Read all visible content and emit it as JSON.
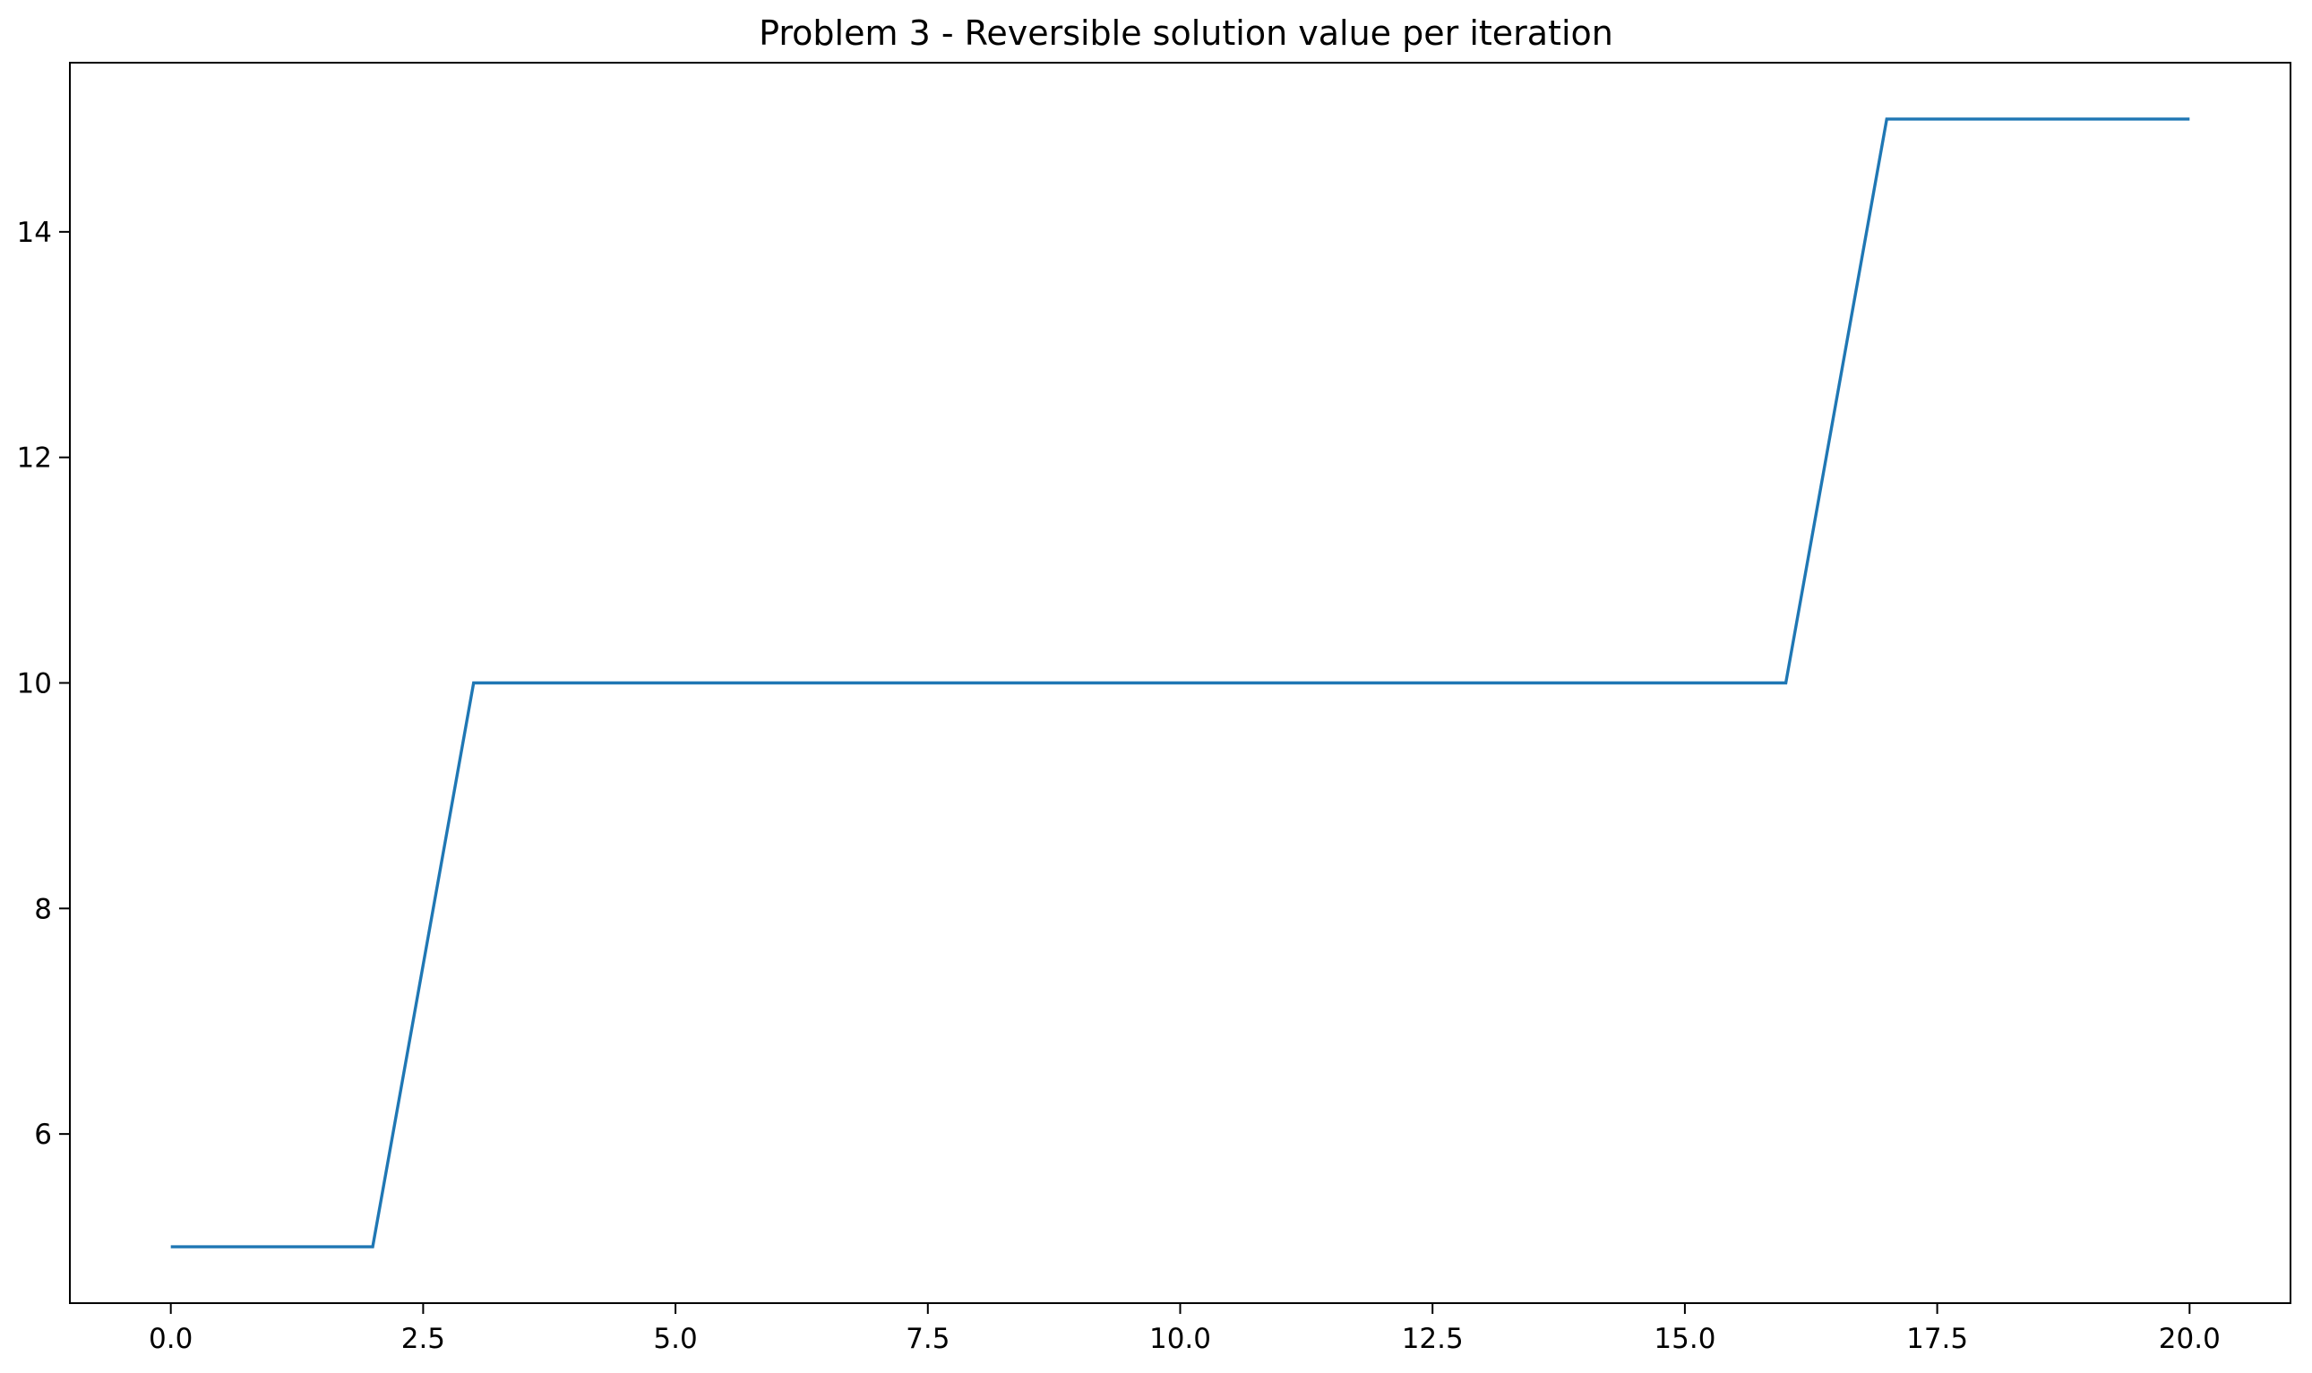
{
  "chart_data": {
    "type": "line",
    "title": "Problem 3 - Reversible solution value per iteration",
    "xlabel": "",
    "ylabel": "",
    "xlim": [
      -1.0,
      21.0
    ],
    "ylim": [
      4.5,
      15.5
    ],
    "x_ticks": [
      0.0,
      2.5,
      5.0,
      7.5,
      10.0,
      12.5,
      15.0,
      17.5,
      20.0
    ],
    "x_tick_labels": [
      "0.0",
      "2.5",
      "5.0",
      "7.5",
      "10.0",
      "12.5",
      "15.0",
      "17.5",
      "20.0"
    ],
    "y_ticks": [
      6,
      8,
      10,
      12,
      14
    ],
    "y_tick_labels": [
      "6",
      "8",
      "10",
      "12",
      "14"
    ],
    "grid": false,
    "legend": "none",
    "line_color": "#1f77b4",
    "series": [
      {
        "x": [
          0,
          1,
          2,
          3,
          4,
          5,
          6,
          7,
          8,
          9,
          10,
          11,
          12,
          13,
          14,
          15,
          16,
          17,
          18,
          19,
          20
        ],
        "values": [
          5,
          5,
          5,
          10,
          10,
          10,
          10,
          10,
          10,
          10,
          10,
          10,
          10,
          10,
          10,
          10,
          10,
          15,
          15,
          15,
          15
        ]
      }
    ]
  }
}
